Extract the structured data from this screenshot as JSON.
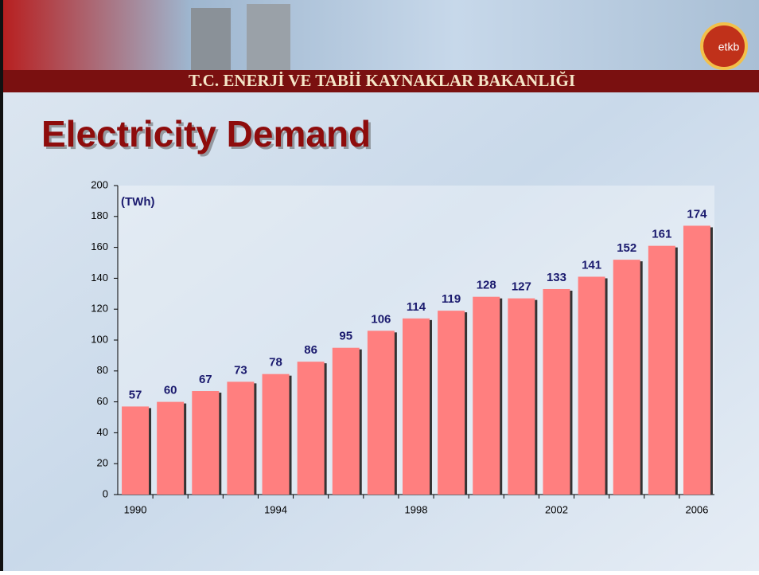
{
  "header": {
    "banner": "T.C. ENERJİ VE TABİİ KAYNAKLAR BAKANLIĞI",
    "logo": "etkb"
  },
  "chart_data": {
    "type": "bar",
    "title": "Electricity Demand",
    "ylabel": "(TWh)",
    "categories": [
      "1990",
      null,
      null,
      null,
      "1994",
      null,
      null,
      null,
      "1998",
      null,
      null,
      null,
      "2002",
      null,
      null,
      null,
      "2006"
    ],
    "values": [
      57,
      60,
      67,
      73,
      78,
      86,
      95,
      106,
      114,
      119,
      128,
      127,
      133,
      141,
      152,
      161,
      174
    ],
    "color": "#ff7f7f",
    "ylim": [
      0,
      200
    ],
    "yticks": [
      0,
      20,
      40,
      60,
      80,
      100,
      120,
      140,
      160,
      180,
      200
    ],
    "grid": false
  }
}
